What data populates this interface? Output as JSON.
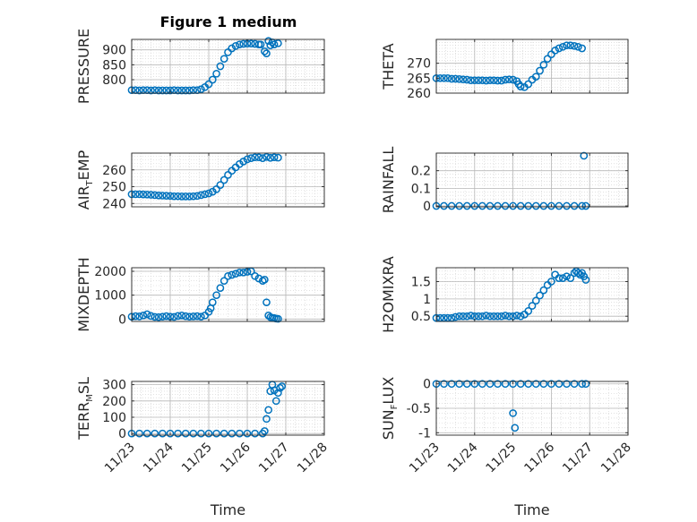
{
  "chart_data": {
    "title": "Figure 1 medium",
    "x_axis": {
      "label": "Time",
      "range": [
        0,
        5
      ],
      "tick_values": [
        0,
        1,
        2,
        3,
        4,
        5
      ],
      "tick_labels": [
        "11/23",
        "11/24",
        "11/25",
        "11/26",
        "11/27",
        "11/28"
      ]
    },
    "marker": "o",
    "marker_color": "#0072BD",
    "grid": "major-and-minor",
    "panels": [
      {
        "name": "pressure",
        "type": "scatter",
        "ylabel": "PRESSURE",
        "ylim": [
          755,
          935
        ],
        "yticks": [
          800,
          850,
          900
        ],
        "ytick_labels": [
          "800",
          "850",
          "900"
        ],
        "points": [
          [
            0.0,
            765
          ],
          [
            0.1,
            765
          ],
          [
            0.2,
            764
          ],
          [
            0.3,
            765
          ],
          [
            0.4,
            765
          ],
          [
            0.5,
            764
          ],
          [
            0.6,
            765
          ],
          [
            0.7,
            764
          ],
          [
            0.8,
            764
          ],
          [
            0.9,
            764
          ],
          [
            1.0,
            764
          ],
          [
            1.1,
            765
          ],
          [
            1.2,
            764
          ],
          [
            1.3,
            764
          ],
          [
            1.4,
            764
          ],
          [
            1.5,
            764
          ],
          [
            1.6,
            765
          ],
          [
            1.7,
            765
          ],
          [
            1.8,
            768
          ],
          [
            1.9,
            775
          ],
          [
            2.0,
            785
          ],
          [
            2.1,
            800
          ],
          [
            2.2,
            820
          ],
          [
            2.3,
            845
          ],
          [
            2.4,
            870
          ],
          [
            2.5,
            892
          ],
          [
            2.6,
            905
          ],
          [
            2.7,
            913
          ],
          [
            2.8,
            918
          ],
          [
            2.9,
            920
          ],
          [
            3.0,
            921
          ],
          [
            3.1,
            921
          ],
          [
            3.2,
            920
          ],
          [
            3.3,
            918
          ],
          [
            3.35,
            918
          ],
          [
            3.45,
            895
          ],
          [
            3.5,
            888
          ],
          [
            3.55,
            930
          ],
          [
            3.6,
            915
          ],
          [
            3.65,
            925
          ],
          [
            3.7,
            918
          ],
          [
            3.8,
            922
          ]
        ]
      },
      {
        "name": "theta",
        "type": "scatter",
        "ylabel": "THETA",
        "ylim": [
          260,
          278
        ],
        "yticks": [
          260,
          265,
          270
        ],
        "ytick_labels": [
          "260",
          "265",
          "270"
        ],
        "points": [
          [
            0.0,
            265
          ],
          [
            0.1,
            265
          ],
          [
            0.2,
            265
          ],
          [
            0.3,
            265
          ],
          [
            0.4,
            264.8
          ],
          [
            0.5,
            264.8
          ],
          [
            0.6,
            264.7
          ],
          [
            0.7,
            264.6
          ],
          [
            0.8,
            264.5
          ],
          [
            0.9,
            264.3
          ],
          [
            1.0,
            264.3
          ],
          [
            1.1,
            264.3
          ],
          [
            1.2,
            264.3
          ],
          [
            1.3,
            264.2
          ],
          [
            1.4,
            264.3
          ],
          [
            1.5,
            264.3
          ],
          [
            1.6,
            264.2
          ],
          [
            1.7,
            264.2
          ],
          [
            1.8,
            264.5
          ],
          [
            1.9,
            264.6
          ],
          [
            2.0,
            264.5
          ],
          [
            2.1,
            264
          ],
          [
            2.15,
            263
          ],
          [
            2.2,
            262.2
          ],
          [
            2.3,
            262
          ],
          [
            2.4,
            263
          ],
          [
            2.5,
            264.5
          ],
          [
            2.6,
            265.5
          ],
          [
            2.7,
            267.5
          ],
          [
            2.8,
            269.5
          ],
          [
            2.9,
            271.5
          ],
          [
            3.0,
            273
          ],
          [
            3.1,
            274.3
          ],
          [
            3.2,
            275
          ],
          [
            3.3,
            275.5
          ],
          [
            3.4,
            276
          ],
          [
            3.5,
            276
          ],
          [
            3.6,
            275.8
          ],
          [
            3.7,
            275.5
          ],
          [
            3.8,
            275
          ]
        ]
      },
      {
        "name": "air_temp",
        "type": "scatter",
        "ylabel": "AIR_TEMP",
        "ylim": [
          238,
          270
        ],
        "yticks": [
          240,
          250,
          260
        ],
        "ytick_labels": [
          "240",
          "250",
          "260"
        ],
        "points": [
          [
            0.0,
            245.5
          ],
          [
            0.1,
            245.5
          ],
          [
            0.2,
            245.5
          ],
          [
            0.3,
            245.4
          ],
          [
            0.4,
            245.3
          ],
          [
            0.5,
            245.2
          ],
          [
            0.6,
            245
          ],
          [
            0.7,
            244.8
          ],
          [
            0.8,
            244.7
          ],
          [
            0.9,
            244.6
          ],
          [
            1.0,
            244.5
          ],
          [
            1.1,
            244.3
          ],
          [
            1.2,
            244.3
          ],
          [
            1.3,
            244.2
          ],
          [
            1.4,
            244.2
          ],
          [
            1.5,
            244.2
          ],
          [
            1.6,
            244.3
          ],
          [
            1.7,
            244.5
          ],
          [
            1.8,
            245
          ],
          [
            1.9,
            245.5
          ],
          [
            2.0,
            246
          ],
          [
            2.1,
            247
          ],
          [
            2.2,
            248.5
          ],
          [
            2.3,
            251
          ],
          [
            2.4,
            254
          ],
          [
            2.5,
            257
          ],
          [
            2.6,
            259.5
          ],
          [
            2.7,
            261.5
          ],
          [
            2.8,
            263.5
          ],
          [
            2.9,
            265
          ],
          [
            3.0,
            266.3
          ],
          [
            3.1,
            267
          ],
          [
            3.2,
            267.5
          ],
          [
            3.3,
            267.5
          ],
          [
            3.4,
            267
          ],
          [
            3.5,
            267.7
          ],
          [
            3.6,
            267.2
          ],
          [
            3.7,
            267.5
          ],
          [
            3.8,
            267.3
          ]
        ]
      },
      {
        "name": "rainfall",
        "type": "scatter",
        "ylabel": "RAINFALL",
        "ylim": [
          -0.005,
          0.3
        ],
        "yticks": [
          0,
          0.1,
          0.2
        ],
        "ytick_labels": [
          "0",
          "0.1",
          "0.2"
        ],
        "points": [
          [
            0.0,
            0
          ],
          [
            0.2,
            0
          ],
          [
            0.4,
            0
          ],
          [
            0.6,
            0
          ],
          [
            0.8,
            0
          ],
          [
            1.0,
            0
          ],
          [
            1.2,
            0
          ],
          [
            1.4,
            0
          ],
          [
            1.6,
            0
          ],
          [
            1.8,
            0
          ],
          [
            2.0,
            0
          ],
          [
            2.2,
            0
          ],
          [
            2.4,
            0
          ],
          [
            2.6,
            0
          ],
          [
            2.8,
            0
          ],
          [
            3.0,
            0
          ],
          [
            3.2,
            0
          ],
          [
            3.4,
            0
          ],
          [
            3.6,
            0
          ],
          [
            3.8,
            0
          ],
          [
            3.9,
            0
          ],
          [
            3.85,
            0.285
          ]
        ]
      },
      {
        "name": "mixdepth",
        "type": "scatter",
        "ylabel": "MIXDEPTH",
        "ylim": [
          -100,
          2150
        ],
        "yticks": [
          0,
          1000,
          2000
        ],
        "ytick_labels": [
          "0",
          "1000",
          "2000"
        ],
        "points": [
          [
            0.0,
            100
          ],
          [
            0.1,
            120
          ],
          [
            0.2,
            110
          ],
          [
            0.3,
            150
          ],
          [
            0.4,
            200
          ],
          [
            0.5,
            130
          ],
          [
            0.6,
            90
          ],
          [
            0.7,
            80
          ],
          [
            0.8,
            100
          ],
          [
            0.9,
            120
          ],
          [
            1.0,
            100
          ],
          [
            1.1,
            90
          ],
          [
            1.2,
            130
          ],
          [
            1.3,
            150
          ],
          [
            1.4,
            120
          ],
          [
            1.5,
            100
          ],
          [
            1.6,
            110
          ],
          [
            1.7,
            120
          ],
          [
            1.8,
            100
          ],
          [
            1.9,
            150
          ],
          [
            2.0,
            300
          ],
          [
            2.05,
            450
          ],
          [
            2.1,
            700
          ],
          [
            2.2,
            1000
          ],
          [
            2.3,
            1300
          ],
          [
            2.4,
            1600
          ],
          [
            2.5,
            1800
          ],
          [
            2.6,
            1850
          ],
          [
            2.7,
            1900
          ],
          [
            2.8,
            1950
          ],
          [
            2.9,
            1950
          ],
          [
            3.0,
            1980
          ],
          [
            3.1,
            2000
          ],
          [
            3.2,
            1800
          ],
          [
            3.3,
            1700
          ],
          [
            3.4,
            1600
          ],
          [
            3.45,
            1650
          ],
          [
            3.5,
            700
          ],
          [
            3.55,
            150
          ],
          [
            3.6,
            80
          ],
          [
            3.65,
            50
          ],
          [
            3.7,
            40
          ],
          [
            3.75,
            20
          ],
          [
            3.8,
            10
          ]
        ]
      },
      {
        "name": "h2omixra",
        "type": "scatter",
        "ylabel": "H2OMIXRA",
        "ylim": [
          0.35,
          1.9
        ],
        "yticks": [
          0.5,
          1,
          1.5
        ],
        "ytick_labels": [
          "0.5",
          "1",
          "1.5"
        ],
        "points": [
          [
            0.0,
            0.45
          ],
          [
            0.1,
            0.45
          ],
          [
            0.2,
            0.45
          ],
          [
            0.3,
            0.45
          ],
          [
            0.4,
            0.45
          ],
          [
            0.5,
            0.48
          ],
          [
            0.6,
            0.5
          ],
          [
            0.7,
            0.5
          ],
          [
            0.8,
            0.5
          ],
          [
            0.9,
            0.52
          ],
          [
            1.0,
            0.5
          ],
          [
            1.1,
            0.5
          ],
          [
            1.2,
            0.5
          ],
          [
            1.3,
            0.52
          ],
          [
            1.4,
            0.5
          ],
          [
            1.5,
            0.5
          ],
          [
            1.6,
            0.5
          ],
          [
            1.7,
            0.5
          ],
          [
            1.8,
            0.52
          ],
          [
            1.9,
            0.5
          ],
          [
            2.0,
            0.5
          ],
          [
            2.1,
            0.52
          ],
          [
            2.2,
            0.5
          ],
          [
            2.3,
            0.55
          ],
          [
            2.4,
            0.65
          ],
          [
            2.5,
            0.8
          ],
          [
            2.6,
            0.95
          ],
          [
            2.7,
            1.1
          ],
          [
            2.8,
            1.25
          ],
          [
            2.9,
            1.4
          ],
          [
            3.0,
            1.5
          ],
          [
            3.1,
            1.7
          ],
          [
            3.2,
            1.6
          ],
          [
            3.3,
            1.6
          ],
          [
            3.4,
            1.65
          ],
          [
            3.5,
            1.6
          ],
          [
            3.6,
            1.75
          ],
          [
            3.65,
            1.8
          ],
          [
            3.7,
            1.75
          ],
          [
            3.75,
            1.7
          ],
          [
            3.8,
            1.75
          ],
          [
            3.85,
            1.65
          ],
          [
            3.9,
            1.55
          ]
        ]
      },
      {
        "name": "terr_msl",
        "type": "scatter",
        "ylabel": "TERR_MSL",
        "ylim": [
          -10,
          320
        ],
        "yticks": [
          0,
          100,
          200,
          300
        ],
        "ytick_labels": [
          "0",
          "100",
          "200",
          "300"
        ],
        "points": [
          [
            0.0,
            0
          ],
          [
            0.2,
            0
          ],
          [
            0.4,
            0
          ],
          [
            0.6,
            0
          ],
          [
            0.8,
            0
          ],
          [
            1.0,
            0
          ],
          [
            1.2,
            0
          ],
          [
            1.4,
            0
          ],
          [
            1.6,
            0
          ],
          [
            1.8,
            0
          ],
          [
            2.0,
            0
          ],
          [
            2.2,
            0
          ],
          [
            2.4,
            0
          ],
          [
            2.6,
            0
          ],
          [
            2.8,
            0
          ],
          [
            3.0,
            0
          ],
          [
            3.2,
            0
          ],
          [
            3.4,
            0
          ],
          [
            3.45,
            15
          ],
          [
            3.5,
            90
          ],
          [
            3.55,
            145
          ],
          [
            3.6,
            260
          ],
          [
            3.65,
            300
          ],
          [
            3.7,
            265
          ],
          [
            3.75,
            200
          ],
          [
            3.8,
            250
          ],
          [
            3.85,
            280
          ],
          [
            3.9,
            290
          ]
        ]
      },
      {
        "name": "sun_flux",
        "type": "scatter",
        "ylabel": "SUN_FLUX",
        "ylim": [
          -1.05,
          0.05
        ],
        "yticks": [
          -1,
          -0.5,
          0
        ],
        "ytick_labels": [
          "-1",
          "-0.5",
          "0"
        ],
        "points": [
          [
            0.0,
            0
          ],
          [
            0.2,
            0
          ],
          [
            0.4,
            0
          ],
          [
            0.6,
            0
          ],
          [
            0.8,
            0
          ],
          [
            1.0,
            0
          ],
          [
            1.2,
            0
          ],
          [
            1.4,
            0
          ],
          [
            1.6,
            0
          ],
          [
            1.8,
            0
          ],
          [
            2.0,
            0
          ],
          [
            2.2,
            0
          ],
          [
            2.4,
            0
          ],
          [
            2.6,
            0
          ],
          [
            2.8,
            0
          ],
          [
            3.0,
            0
          ],
          [
            3.2,
            0
          ],
          [
            3.4,
            0
          ],
          [
            3.6,
            0
          ],
          [
            3.8,
            0
          ],
          [
            3.9,
            0
          ],
          [
            2.0,
            -0.6
          ],
          [
            2.05,
            -0.9
          ]
        ]
      }
    ]
  }
}
